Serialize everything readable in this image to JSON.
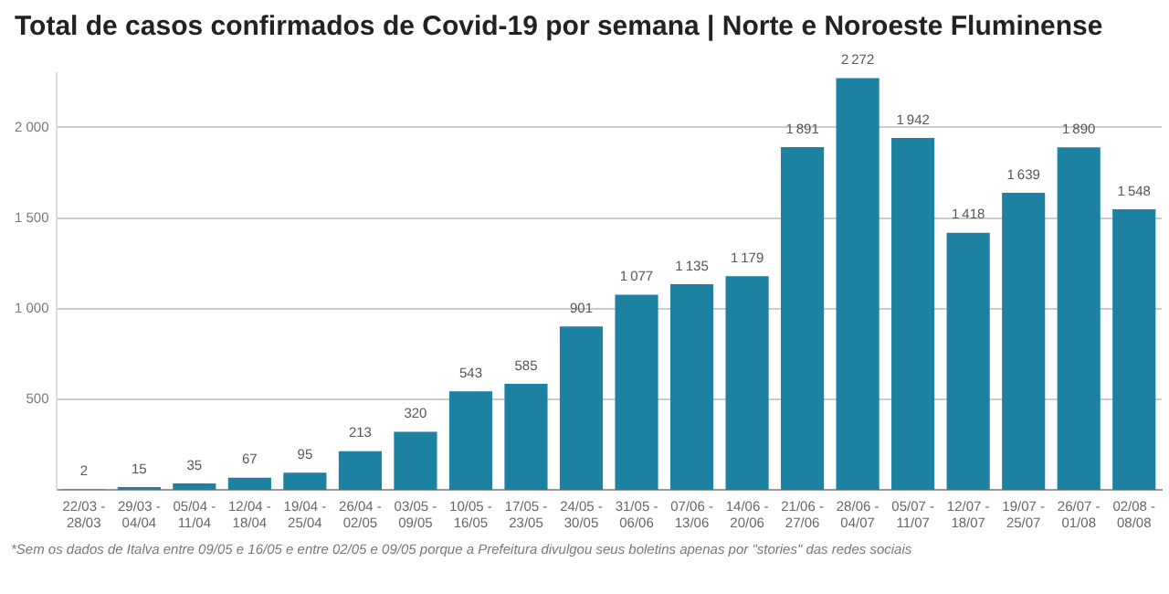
{
  "chart_data": {
    "type": "bar",
    "title": "Total de casos confirmados de Covid-19 por semana | Norte e Noroeste Fluminense",
    "categories": [
      "22/03 - 28/03",
      "29/03 - 04/04",
      "05/04 - 11/04",
      "12/04 - 18/04",
      "19/04 - 25/04",
      "26/04 - 02/05",
      "03/05 - 09/05",
      "10/05 - 16/05",
      "17/05 - 23/05",
      "24/05 - 30/05",
      "31/05 - 06/06",
      "07/06 - 13/06",
      "14/06 - 20/06",
      "21/06 - 27/06",
      "28/06 - 04/07",
      "05/07 - 11/07",
      "12/07 - 18/07",
      "19/07 - 25/07",
      "26/07 - 01/08",
      "02/08 - 08/08"
    ],
    "values": [
      2,
      15,
      35,
      67,
      95,
      213,
      320,
      543,
      585,
      901,
      1077,
      1135,
      1179,
      1891,
      2272,
      1942,
      1418,
      1639,
      1890,
      1548
    ],
    "color": "#1d81a2",
    "data_labels": true,
    "ylim": [
      0,
      2300
    ],
    "yticks": [
      {
        "value": 500,
        "label": "500"
      },
      {
        "value": 1000,
        "label": "1 000"
      },
      {
        "value": 1500,
        "label": "1 500"
      },
      {
        "value": 2000,
        "label": "2 000"
      }
    ],
    "grid": "y",
    "annotations": [
      "*Sem os dados de Italva entre 09/05 e 16/05 e entre 02/05 e 09/05 porque a Prefeitura divulgou seus boletins apenas por \"stories\" das redes sociais"
    ]
  }
}
